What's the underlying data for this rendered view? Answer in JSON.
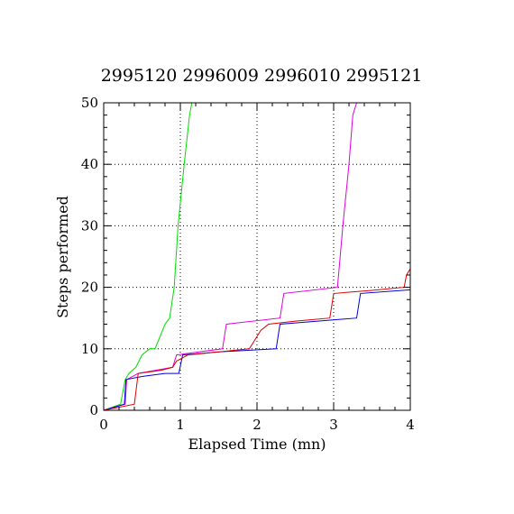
{
  "chart_data": {
    "type": "line",
    "title": "2995120  2996009  2996010  2995121",
    "xlabel": "Elapsed Time (mn)",
    "ylabel": "Steps performed",
    "xlim": [
      0,
      4
    ],
    "ylim": [
      0,
      50
    ],
    "xticks": [
      0,
      1,
      2,
      3,
      4
    ],
    "yticks": [
      0,
      10,
      20,
      30,
      40,
      50
    ],
    "grid": true,
    "series": [
      {
        "color": "#00dd00",
        "x": [
          0,
          0.22,
          0.28,
          0.33,
          0.42,
          0.5,
          0.6,
          0.67,
          0.8,
          0.86,
          0.92,
          0.97,
          1.05,
          1.12,
          1.15
        ],
        "y": [
          0,
          1,
          5,
          6,
          7,
          9,
          10,
          10,
          14,
          15,
          20,
          30,
          40,
          48,
          50
        ]
      },
      {
        "color": "#dd00dd",
        "x": [
          0,
          0.28,
          0.3,
          0.45,
          0.9,
          0.95,
          1.55,
          1.6,
          2.3,
          2.35,
          3.05,
          3.12,
          3.2,
          3.25,
          3.3
        ],
        "y": [
          0,
          1,
          5,
          6,
          7,
          9,
          10,
          14,
          15,
          19,
          20,
          30,
          40,
          48,
          50
        ]
      },
      {
        "color": "#0000dd",
        "x": [
          0,
          0.27,
          0.29,
          0.5,
          0.8,
          0.98,
          1.03,
          1.5,
          2.25,
          2.3,
          3.3,
          3.35,
          4.0
        ],
        "y": [
          0,
          1,
          5,
          5.5,
          6,
          6,
          9,
          9.5,
          10,
          14,
          15,
          19,
          19.6
        ]
      },
      {
        "color": "#dd0000",
        "x": [
          0,
          0.4,
          0.45,
          0.75,
          0.9,
          0.95,
          1.1,
          1.9,
          2.05,
          2.15,
          2.5,
          2.95,
          3.0,
          3.5,
          3.92,
          3.95,
          4.0
        ],
        "y": [
          0,
          1,
          6,
          6.5,
          7,
          8,
          9,
          10,
          13,
          14,
          14.5,
          15,
          19,
          19.5,
          20,
          22,
          23
        ]
      }
    ]
  }
}
